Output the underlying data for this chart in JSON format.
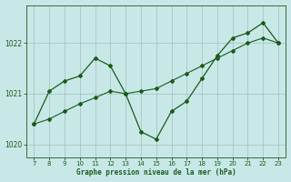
{
  "x": [
    7,
    8,
    9,
    10,
    11,
    12,
    13,
    14,
    15,
    16,
    17,
    18,
    19,
    20,
    21,
    22,
    23
  ],
  "y_main": [
    1020.4,
    1021.05,
    1021.25,
    1021.35,
    1021.7,
    1021.55,
    1021.0,
    1020.25,
    1020.1,
    1020.65,
    1020.85,
    1021.3,
    1021.75,
    1022.1,
    1022.2,
    1022.4,
    1022.0
  ],
  "y_trend": [
    1020.4,
    1020.5,
    1020.65,
    1020.8,
    1020.92,
    1021.05,
    1021.0,
    1021.05,
    1021.1,
    1021.25,
    1021.4,
    1021.55,
    1021.7,
    1021.85,
    1022.0,
    1022.1,
    1022.0
  ],
  "line_color": "#1a5c1a",
  "bg_color": "#c8e8e8",
  "grid_color": "#a0c0c0",
  "xlabel": "Graphe pression niveau de la mer (hPa)",
  "ylim": [
    1019.75,
    1022.75
  ],
  "yticks": [
    1020,
    1021,
    1022
  ],
  "xlim": [
    6.5,
    23.5
  ],
  "xticks": [
    7,
    8,
    9,
    10,
    11,
    12,
    13,
    14,
    15,
    16,
    17,
    18,
    19,
    20,
    21,
    22,
    23
  ]
}
